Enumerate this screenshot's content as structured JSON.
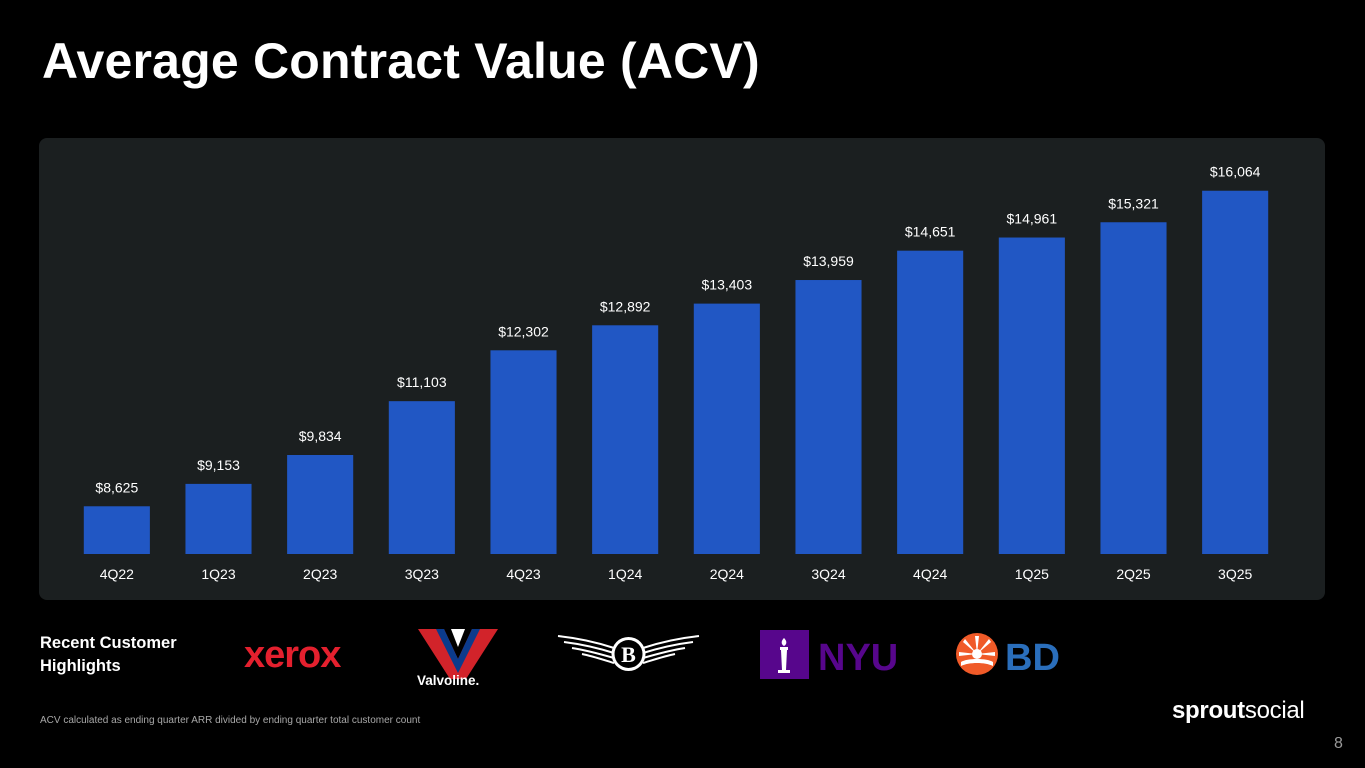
{
  "page": {
    "title": "Average Contract Value (ACV)",
    "highlights_label_line1": "Recent Customer",
    "highlights_label_line2": "Highlights",
    "footnote": "ACV calculated as ending quarter ARR divided by ending quarter total customer count",
    "brand_bold": "sprout",
    "brand_light": "social",
    "page_number": "8"
  },
  "logos": [
    {
      "name": "xerox",
      "text": "xerox",
      "color": "#e4202e"
    },
    {
      "name": "valvoline",
      "text": "Valvoline.",
      "color": "#d2232a"
    },
    {
      "name": "bentley",
      "text": "B",
      "color": "#ffffff"
    },
    {
      "name": "nyu",
      "text": "NYU",
      "color": "#57068c"
    },
    {
      "name": "bd",
      "text": "BD",
      "color": "#2a6ebb"
    }
  ],
  "chart_data": {
    "type": "bar",
    "categories": [
      "4Q22",
      "1Q23",
      "2Q23",
      "3Q23",
      "4Q23",
      "1Q24",
      "2Q24",
      "3Q24",
      "4Q24",
      "1Q25",
      "2Q25",
      "3Q25"
    ],
    "values": [
      8625,
      9153,
      9834,
      11103,
      12302,
      12892,
      13403,
      13959,
      14651,
      14961,
      15321,
      16064
    ],
    "data_labels": [
      "$8,625",
      "$9,153",
      "$9,834",
      "$11,103",
      "$12,302",
      "$12,892",
      "$13,403",
      "$13,959",
      "$14,651",
      "$14,961",
      "$15,321",
      "$16,064"
    ],
    "title": "",
    "xlabel": "",
    "ylabel": "",
    "ylim": [
      7500,
      16600
    ],
    "grid": false,
    "legend": "none",
    "bar_color": "#2157c4",
    "panel_color": "#1b1f20"
  }
}
